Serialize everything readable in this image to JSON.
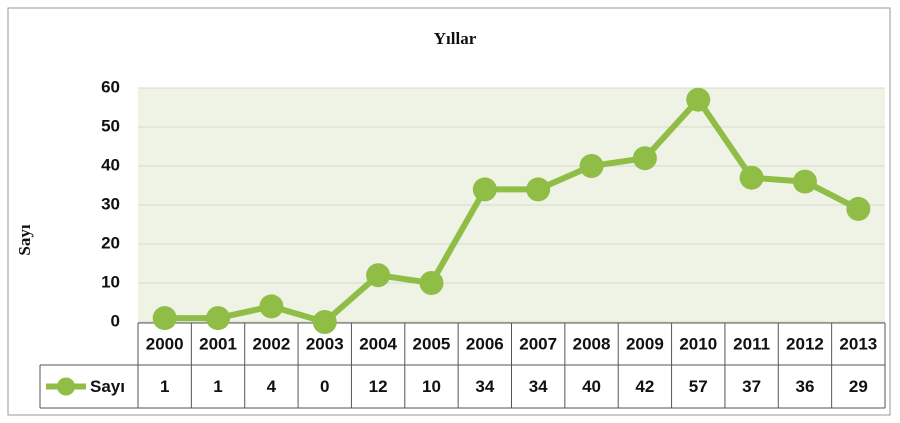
{
  "chart_data": {
    "type": "line",
    "title": "Yıllar",
    "y_label": "Sayı",
    "categories": [
      "2000",
      "2001",
      "2002",
      "2003",
      "2004",
      "2005",
      "2006",
      "2007",
      "2008",
      "2009",
      "2010",
      "2011",
      "2012",
      "2013"
    ],
    "series": [
      {
        "name": "Sayı",
        "color": "#8fbd45",
        "values": [
          1,
          1,
          4,
          0,
          12,
          10,
          34,
          34,
          40,
          42,
          57,
          37,
          36,
          29
        ]
      }
    ],
    "ylim": [
      0,
      60
    ],
    "yticks": [
      0,
      10,
      20,
      30,
      40,
      50,
      60
    ],
    "grid": true,
    "data_table": true
  }
}
